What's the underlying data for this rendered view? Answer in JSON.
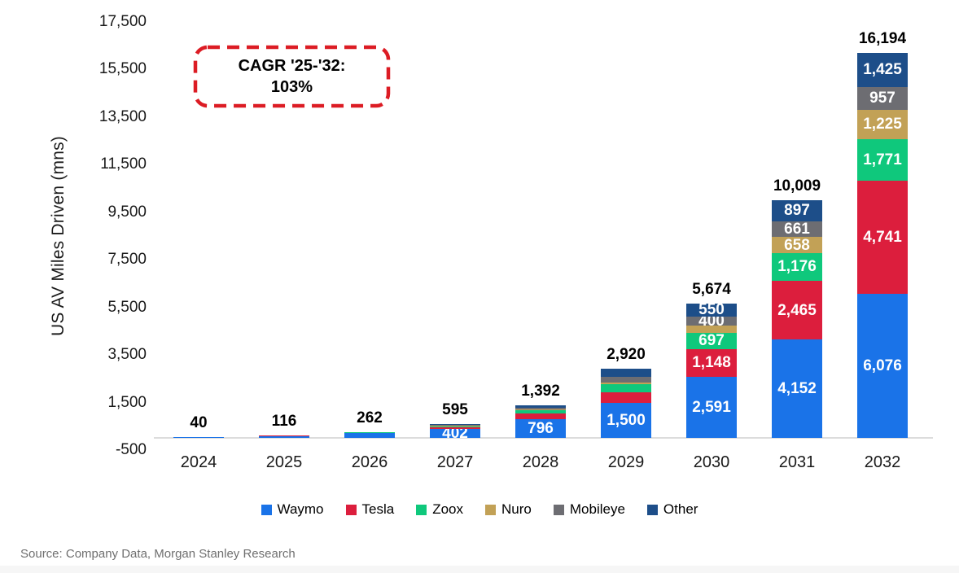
{
  "chart": {
    "y_axis_title": "US AV Miles Driven (mns)",
    "cagr_line1": "CAGR '25-'32:",
    "cagr_line2": "103%",
    "source": "Source: Company Data, Morgan Stanley Research",
    "cagr_border_color": "#dc1c24"
  },
  "chart_data": {
    "type": "bar",
    "stacked": true,
    "title": "",
    "xlabel": "",
    "ylabel": "US AV Miles Driven (mns)",
    "ylim": [
      -500,
      17500
    ],
    "grid": false,
    "legend_position": "bottom",
    "annotation": "CAGR '25-'32: 103%",
    "ytick_labels": [
      "-500",
      "1,500",
      "3,500",
      "5,500",
      "7,500",
      "9,500",
      "11,500",
      "13,500",
      "15,500",
      "17,500"
    ],
    "categories": [
      "2024",
      "2025",
      "2026",
      "2027",
      "2028",
      "2029",
      "2030",
      "2031",
      "2032"
    ],
    "totals": [
      "40",
      "116",
      "262",
      "595",
      "1,392",
      "2,920",
      "5,674",
      "10,009",
      "16,194"
    ],
    "series": [
      {
        "name": "Waymo",
        "color": "#1a73e8",
        "values": [
          38,
          110,
          250,
          402,
          796,
          1500,
          2591,
          4152,
          6076
        ],
        "labels": [
          null,
          null,
          null,
          "402",
          "796",
          "1,500",
          "2,591",
          "4,152",
          "6,076"
        ]
      },
      {
        "name": "Tesla",
        "color": "#dc1e3d",
        "values": [
          1,
          3,
          5,
          70,
          230,
          430,
          1148,
          2465,
          4741
        ],
        "labels": [
          null,
          null,
          null,
          null,
          null,
          null,
          "1,148",
          "2,465",
          "4,741"
        ]
      },
      {
        "name": "Zoox",
        "color": "#0fc87c",
        "values": [
          0,
          1,
          3,
          30,
          160,
          330,
          697,
          1176,
          1771
        ],
        "labels": [
          null,
          null,
          null,
          null,
          null,
          null,
          "697",
          "1,176",
          "1,771"
        ]
      },
      {
        "name": "Nuro",
        "color": "#c2a156",
        "values": [
          0,
          1,
          1,
          25,
          40,
          80,
          288,
          658,
          1225
        ],
        "labels": [
          null,
          null,
          null,
          null,
          null,
          null,
          null,
          "658",
          "1,225"
        ]
      },
      {
        "name": "Mobileye",
        "color": "#6d6d72",
        "values": [
          1,
          1,
          2,
          33,
          70,
          240,
          400,
          661,
          957
        ],
        "labels": [
          null,
          null,
          null,
          null,
          null,
          null,
          "400",
          "661",
          "957"
        ]
      },
      {
        "name": "Other",
        "color": "#1d4e89",
        "values": [
          0,
          0,
          1,
          35,
          96,
          340,
          550,
          897,
          1425
        ],
        "labels": [
          null,
          null,
          null,
          null,
          null,
          null,
          "550",
          "897",
          "1,425"
        ]
      }
    ]
  }
}
